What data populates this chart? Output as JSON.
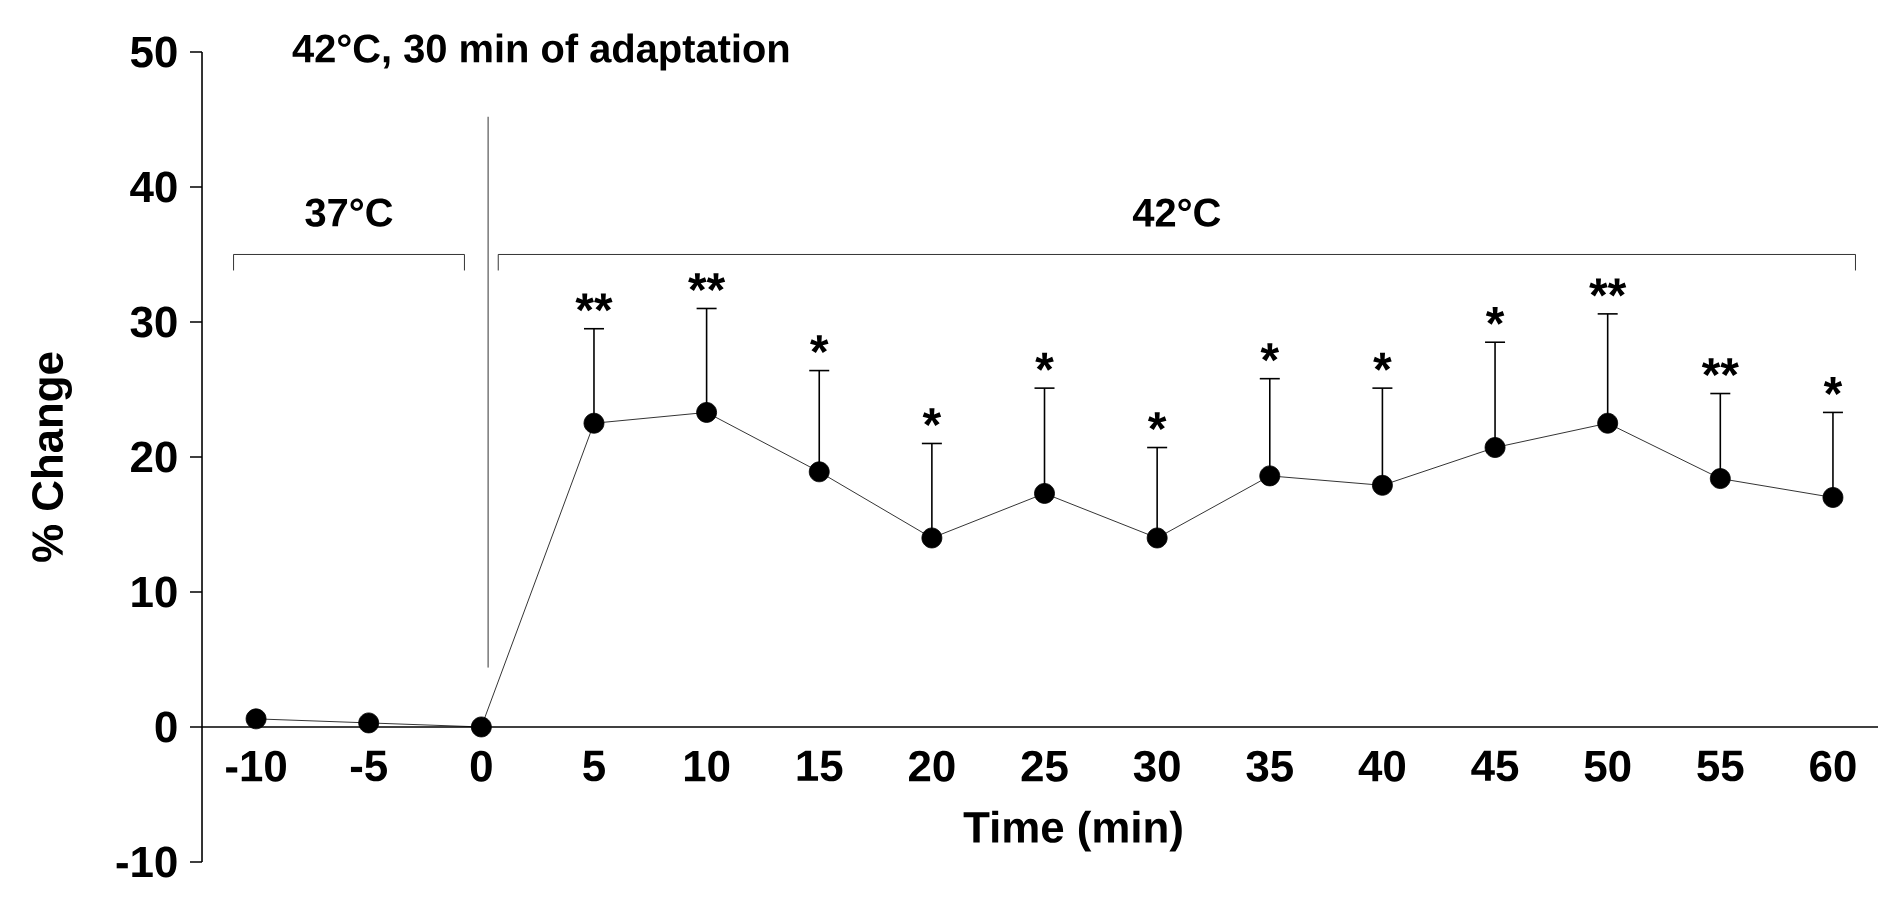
{
  "chart_data": {
    "type": "line",
    "xlabel": "Time (min)",
    "ylabel": "% Change",
    "categories": [
      "-10",
      "-5",
      "0",
      "5",
      "10",
      "15",
      "20",
      "25",
      "30",
      "35",
      "40",
      "45",
      "50",
      "55",
      "60"
    ],
    "series": [
      {
        "color": "#000000",
        "values": [
          0.6,
          0.3,
          0,
          22.5,
          23.3,
          18.9,
          14.0,
          17.3,
          14.0,
          18.6,
          17.9,
          20.7,
          22.5,
          18.4,
          17.0
        ],
        "errors": [
          null,
          null,
          null,
          [
            22.5,
            29.5
          ],
          [
            23.3,
            31.0
          ],
          [
            18.9,
            26.4
          ],
          [
            14.0,
            21.0
          ],
          [
            17.3,
            25.1
          ],
          [
            14.0,
            20.7
          ],
          [
            18.6,
            25.8
          ],
          [
            17.9,
            25.1
          ],
          [
            20.7,
            28.5
          ],
          [
            22.5,
            30.6
          ],
          [
            18.4,
            24.7
          ],
          [
            17.0,
            23.3
          ]
        ]
      }
    ],
    "ylim": [
      -10,
      50
    ],
    "yticks": [
      -10,
      0,
      10,
      20,
      30,
      40,
      50
    ],
    "grid": false,
    "marker": "circle",
    "line_style": "solid",
    "ref_lines": [
      {
        "axis": "x",
        "value": "0",
        "label": "42°C, 30 min of adaptation"
      }
    ],
    "annotations": [
      "37°C",
      "42°C",
      {
        "text": "**",
        "x": "5",
        "y": 22.5
      },
      {
        "text": "**",
        "x": "10",
        "y": 23.3
      },
      {
        "text": "*",
        "x": "15",
        "y": 18.9
      },
      {
        "text": "*",
        "x": "20",
        "y": 14.0
      },
      {
        "text": "*",
        "x": "25",
        "y": 17.3
      },
      {
        "text": "*",
        "x": "30",
        "y": 14.0
      },
      {
        "text": "*",
        "x": "35",
        "y": 18.6
      },
      {
        "text": "*",
        "x": "40",
        "y": 17.9
      },
      {
        "text": "*",
        "x": "45",
        "y": 20.7
      },
      {
        "text": "**",
        "x": "50",
        "y": 22.5
      },
      {
        "text": "**",
        "x": "55",
        "y": 18.4
      },
      {
        "text": "*",
        "x": "60",
        "y": 17.0
      }
    ]
  }
}
